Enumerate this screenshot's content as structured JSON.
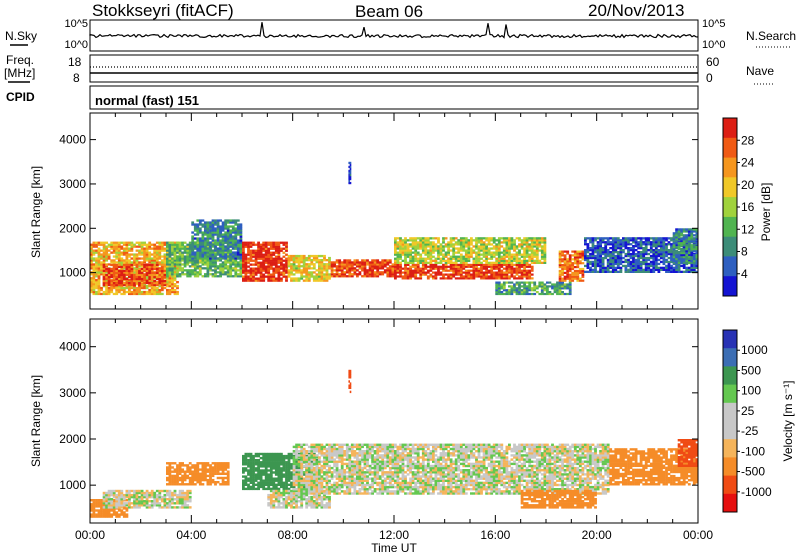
{
  "header": {
    "station": "Stokkseyri (fitACF)",
    "beam": "Beam 06",
    "date": "20/Nov/2013"
  },
  "top_panels": {
    "nsky_label": "N.Sky",
    "nsearch_label": "N.Search",
    "noise_ticks_left": [
      "10^5",
      "10^0"
    ],
    "noise_ticks_right": [
      "10^5",
      "10^0"
    ],
    "freq_label": "Freq.",
    "freq_unit": "[MHz]",
    "freq_ticks": [
      "18",
      "8"
    ],
    "nave_label": "Nave",
    "nave_ticks": [
      "60",
      "0"
    ],
    "cpid_label": "CPID",
    "cpid_text": "normal (fast) 151"
  },
  "colors": {
    "power_scale": [
      "#1414d2",
      "#2e5fc0",
      "#3c8c78",
      "#50b450",
      "#a0d23c",
      "#f0c828",
      "#f5961e",
      "#f05a14",
      "#dc1e14"
    ],
    "velocity_scale": [
      "#e60f0f",
      "#f04b14",
      "#f58c28",
      "#f5b45a",
      "#c8c8c8",
      "#c8c8c8",
      "#64c850",
      "#3c9650",
      "#3c6eb4",
      "#2832b4"
    ]
  },
  "chart_data": [
    {
      "type": "heatmap",
      "name": "power",
      "ylabel": "Slant Range [km]",
      "xlim": [
        "00:00",
        "24:00"
      ],
      "ylim": [
        180,
        4600
      ],
      "yticks": [
        "1000",
        "2000",
        "3000",
        "4000"
      ],
      "xticks": [
        "00:00",
        "04:00",
        "08:00",
        "12:00",
        "16:00",
        "20:00",
        "00:00"
      ],
      "colorbar": {
        "label": "Power [dB]",
        "ticks": [
          "28",
          "24",
          "20",
          "16",
          "12",
          "8",
          "4"
        ],
        "range": [
          0,
          30
        ]
      },
      "regions": [
        {
          "t0": 0.0,
          "t1": 3.5,
          "r0": 500,
          "r1": 1700,
          "level": 20
        },
        {
          "t0": 0.5,
          "t1": 3.0,
          "r0": 700,
          "r1": 1200,
          "level": 26
        },
        {
          "t0": 3.0,
          "t1": 6.0,
          "r0": 900,
          "r1": 1700,
          "level": 12
        },
        {
          "t0": 4.0,
          "t1": 6.0,
          "r0": 1300,
          "r1": 2200,
          "level": 8
        },
        {
          "t0": 6.0,
          "t1": 7.8,
          "r0": 800,
          "r1": 1700,
          "level": 28
        },
        {
          "t0": 7.8,
          "t1": 9.5,
          "r0": 800,
          "r1": 1400,
          "level": 18
        },
        {
          "t0": 9.5,
          "t1": 12.0,
          "r0": 900,
          "r1": 1300,
          "level": 26
        },
        {
          "t0": 12.0,
          "t1": 17.5,
          "r0": 850,
          "r1": 1200,
          "level": 27
        },
        {
          "t0": 12.0,
          "t1": 18.0,
          "r0": 1200,
          "r1": 1800,
          "level": 16
        },
        {
          "t0": 16.0,
          "t1": 19.0,
          "r0": 500,
          "r1": 800,
          "level": 10
        },
        {
          "t0": 18.5,
          "t1": 19.5,
          "r0": 800,
          "r1": 1500,
          "level": 24
        },
        {
          "t0": 19.5,
          "t1": 24.0,
          "r0": 1000,
          "r1": 1800,
          "level": 5
        },
        {
          "t0": 23.0,
          "t1": 24.0,
          "r0": 1200,
          "r1": 2000,
          "level": 8
        },
        {
          "t0": 10.2,
          "t1": 10.3,
          "r0": 3000,
          "r1": 3500,
          "level": 3
        }
      ]
    },
    {
      "type": "heatmap",
      "name": "velocity",
      "ylabel": "Slant Range [km]",
      "xlabel": "Time UT",
      "xlim": [
        "00:00",
        "24:00"
      ],
      "ylim": [
        180,
        4600
      ],
      "yticks": [
        "1000",
        "2000",
        "3000",
        "4000"
      ],
      "xticks": [
        "00:00",
        "04:00",
        "08:00",
        "12:00",
        "16:00",
        "20:00",
        "00:00"
      ],
      "colorbar": {
        "label": "Velocity [m s⁻¹]",
        "ticks": [
          "1000",
          "500",
          "100",
          "25",
          "-25",
          "-100",
          "-500",
          "-1000"
        ]
      },
      "regions": [
        {
          "t0": 0.0,
          "t1": 1.5,
          "r0": 300,
          "r1": 700,
          "level": -400
        },
        {
          "t0": 0.5,
          "t1": 4.0,
          "r0": 500,
          "r1": 900,
          "level": 0
        },
        {
          "t0": 3.0,
          "t1": 5.5,
          "r0": 1000,
          "r1": 1500,
          "level": -300
        },
        {
          "t0": 6.0,
          "t1": 9.0,
          "r0": 900,
          "r1": 1700,
          "level": 200
        },
        {
          "t0": 7.0,
          "t1": 9.5,
          "r0": 500,
          "r1": 900,
          "level": 0
        },
        {
          "t0": 8.0,
          "t1": 20.5,
          "r0": 800,
          "r1": 1900,
          "level": 0
        },
        {
          "t0": 17.0,
          "t1": 20.0,
          "r0": 500,
          "r1": 900,
          "level": -400
        },
        {
          "t0": 20.5,
          "t1": 24.0,
          "r0": 1000,
          "r1": 1800,
          "level": -300
        },
        {
          "t0": 23.2,
          "t1": 24.0,
          "r0": 1400,
          "r1": 2000,
          "level": -800
        },
        {
          "t0": 10.2,
          "t1": 10.3,
          "r0": 3000,
          "r1": 3500,
          "level": -900
        }
      ]
    }
  ]
}
